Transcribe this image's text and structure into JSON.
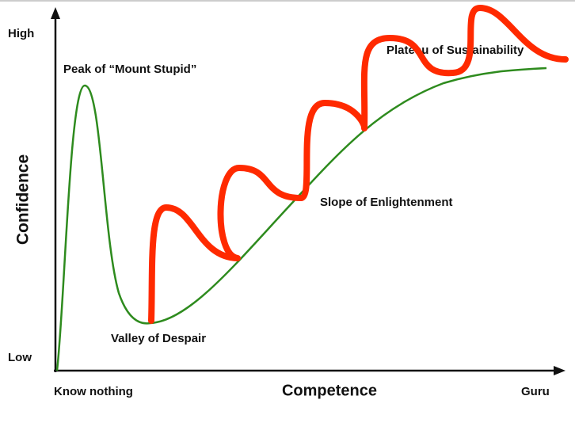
{
  "axes": {
    "y_title": "Confidence",
    "y_high": "High",
    "y_low": "Low",
    "x_title": "Competence",
    "x_start": "Know nothing",
    "x_end": "Guru"
  },
  "labels": {
    "peak": "Peak of “Mount Stupid”",
    "valley": "Valley of Despair",
    "slope": "Slope of Enlightenment",
    "plateau": "Plateau of Sustainability"
  }
}
